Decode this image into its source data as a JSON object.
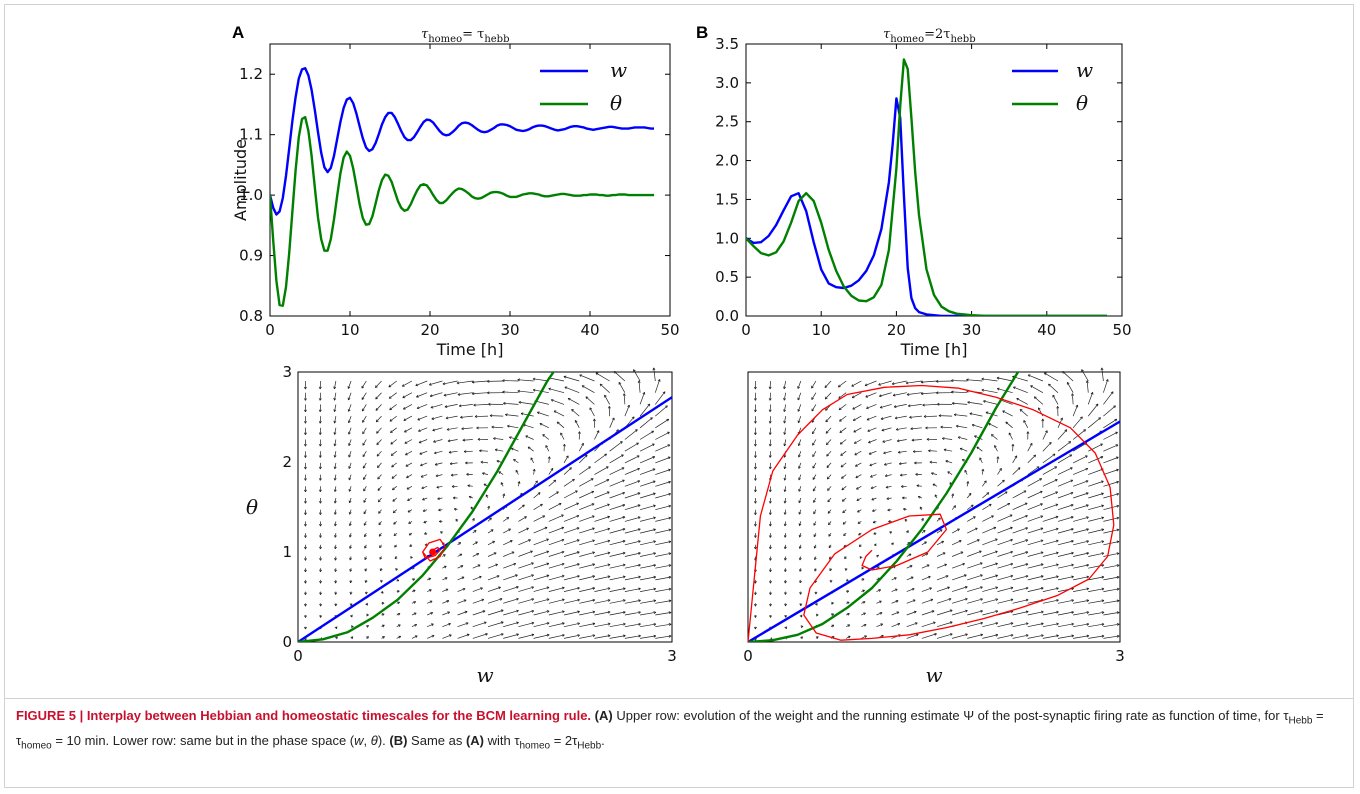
{
  "figure": {
    "panels": {
      "a": {
        "letter": "A",
        "title_tau": "τ",
        "title_sub1": "homeo",
        "title_eq": "= τ",
        "title_sub2": "hebb"
      },
      "b": {
        "letter": "B",
        "title_tau": "τ",
        "title_sub1": "homeo",
        "title_eq": "=2τ",
        "title_sub2": "hebb"
      }
    },
    "legend": {
      "w": "w",
      "theta": "θ"
    },
    "phase_axes": {
      "xlabel": "w",
      "ylabel": "θ"
    }
  },
  "colors": {
    "w": "#0000ff",
    "theta": "#008000",
    "trajectory": "#ff0000",
    "arrow": "#222222"
  },
  "chart_data": [
    {
      "type": "line",
      "panel": "A-top",
      "xlabel": "Time [h]",
      "ylabel": "Amplitude",
      "xlim": [
        0,
        50
      ],
      "ylim": [
        0.8,
        1.25
      ],
      "xticks": [
        "0",
        "10",
        "20",
        "30",
        "40",
        "50"
      ],
      "yticks": [
        "0.8",
        "0.9",
        "1.0",
        "1.1",
        "1.2"
      ],
      "series": [
        {
          "name": "w",
          "x": [
            0,
            0.4,
            0.8,
            1.2,
            1.6,
            2.0,
            2.4,
            2.8,
            3.2,
            3.6,
            4.0,
            4.4,
            4.8,
            5.2,
            5.6,
            6.0,
            6.4,
            6.8,
            7.2,
            7.6,
            8.0,
            8.4,
            8.8,
            9.2,
            9.6,
            10.0,
            10.4,
            10.8,
            11.2,
            11.6,
            12.0,
            12.4,
            12.8,
            13.2,
            13.6,
            14.0,
            14.4,
            14.8,
            15.2,
            15.6,
            16.0,
            16.4,
            16.8,
            17.2,
            17.6,
            18.0,
            18.4,
            18.8,
            19.2,
            19.6,
            20.0,
            20.4,
            20.8,
            21.2,
            21.6,
            22.0,
            22.4,
            22.8,
            23.2,
            23.6,
            24.0,
            24.4,
            24.8,
            25.2,
            25.6,
            26.0,
            26.4,
            26.8,
            27.2,
            27.6,
            28.0,
            28.4,
            28.8,
            29.2,
            29.6,
            30.0,
            30.4,
            30.8,
            31.2,
            31.6,
            32.0,
            32.4,
            32.8,
            33.2,
            33.6,
            34.0,
            34.4,
            34.8,
            35.2,
            35.6,
            36.0,
            36.4,
            36.8,
            37.2,
            37.6,
            38.0,
            38.4,
            38.8,
            39.2,
            39.6,
            40.0,
            40.4,
            40.8,
            41.2,
            41.6,
            42.0,
            42.4,
            42.8,
            43.2,
            43.6,
            44.0,
            44.4,
            44.8,
            45.2,
            45.6,
            46.0,
            46.4,
            46.8,
            47.2,
            47.6,
            48.0
          ],
          "values": [
            1.0,
            0.979,
            0.968,
            0.973,
            0.995,
            1.032,
            1.077,
            1.123,
            1.162,
            1.193,
            1.208,
            1.21,
            1.198,
            1.174,
            1.141,
            1.104,
            1.07,
            1.046,
            1.038,
            1.045,
            1.065,
            1.093,
            1.121,
            1.144,
            1.158,
            1.161,
            1.152,
            1.135,
            1.114,
            1.094,
            1.079,
            1.073,
            1.076,
            1.086,
            1.101,
            1.117,
            1.129,
            1.136,
            1.136,
            1.129,
            1.118,
            1.106,
            1.096,
            1.091,
            1.091,
            1.096,
            1.104,
            1.113,
            1.121,
            1.125,
            1.124,
            1.12,
            1.113,
            1.106,
            1.101,
            1.099,
            1.1,
            1.104,
            1.109,
            1.115,
            1.119,
            1.12,
            1.119,
            1.116,
            1.112,
            1.108,
            1.105,
            1.104,
            1.105,
            1.108,
            1.111,
            1.115,
            1.117,
            1.117,
            1.116,
            1.114,
            1.111,
            1.108,
            1.107,
            1.106,
            1.107,
            1.109,
            1.112,
            1.114,
            1.115,
            1.115,
            1.114,
            1.112,
            1.11,
            1.108,
            1.107,
            1.108,
            1.109,
            1.111,
            1.113,
            1.114,
            1.114,
            1.113,
            1.112,
            1.11,
            1.109,
            1.108,
            1.109,
            1.11,
            1.111,
            1.112,
            1.113,
            1.113,
            1.112,
            1.111,
            1.11,
            1.11,
            1.11,
            1.111,
            1.112,
            1.112,
            1.112,
            1.112,
            1.111,
            1.11,
            1.11
          ]
        },
        {
          "name": "θ",
          "x": [
            0,
            0.4,
            0.8,
            1.2,
            1.6,
            2.0,
            2.4,
            2.8,
            3.2,
            3.6,
            4.0,
            4.4,
            4.8,
            5.2,
            5.6,
            6.0,
            6.4,
            6.8,
            7.2,
            7.6,
            8.0,
            8.4,
            8.8,
            9.2,
            9.6,
            10.0,
            10.4,
            10.8,
            11.2,
            11.6,
            12.0,
            12.4,
            12.8,
            13.2,
            13.6,
            14.0,
            14.4,
            14.8,
            15.2,
            15.6,
            16.0,
            16.4,
            16.8,
            17.2,
            17.6,
            18.0,
            18.4,
            18.8,
            19.2,
            19.6,
            20.0,
            20.4,
            20.8,
            21.2,
            21.6,
            22.0,
            22.4,
            22.8,
            23.2,
            23.6,
            24.0,
            24.4,
            24.8,
            25.2,
            25.6,
            26.0,
            26.4,
            26.8,
            27.2,
            27.6,
            28.0,
            28.4,
            28.8,
            29.2,
            29.6,
            30.0,
            30.4,
            30.8,
            31.2,
            31.6,
            32.0,
            32.4,
            32.8,
            33.2,
            33.6,
            34.0,
            34.4,
            34.8,
            35.2,
            35.6,
            36.0,
            36.4,
            36.8,
            37.2,
            37.6,
            38.0,
            38.4,
            38.8,
            39.2,
            39.6,
            40.0,
            40.4,
            40.8,
            41.2,
            41.6,
            42.0,
            42.4,
            42.8,
            43.2,
            43.6,
            44.0,
            44.4,
            44.8,
            45.2,
            45.6,
            46.0,
            46.4,
            46.8,
            47.2,
            47.6,
            48.0
          ],
          "values": [
            1.0,
            0.925,
            0.858,
            0.818,
            0.817,
            0.848,
            0.904,
            0.973,
            1.041,
            1.096,
            1.126,
            1.129,
            1.106,
            1.065,
            1.013,
            0.963,
            0.927,
            0.908,
            0.908,
            0.927,
            0.96,
            0.999,
            1.036,
            1.062,
            1.072,
            1.065,
            1.044,
            1.015,
            0.985,
            0.962,
            0.951,
            0.952,
            0.965,
            0.986,
            1.008,
            1.025,
            1.034,
            1.032,
            1.022,
            1.006,
            0.99,
            0.979,
            0.974,
            0.976,
            0.985,
            0.997,
            1.008,
            1.016,
            1.018,
            1.016,
            1.009,
            1.0,
            0.992,
            0.987,
            0.987,
            0.991,
            0.997,
            1.003,
            1.008,
            1.011,
            1.01,
            1.007,
            1.003,
            0.998,
            0.995,
            0.994,
            0.995,
            0.998,
            1.001,
            1.004,
            1.005,
            1.005,
            1.004,
            1.002,
            0.999,
            0.997,
            0.997,
            0.997,
            0.999,
            1.001,
            1.002,
            1.003,
            1.003,
            1.002,
            1.001,
            0.999,
            0.998,
            0.998,
            0.999,
            1.0,
            1.001,
            1.002,
            1.002,
            1.001,
            1.0,
            0.999,
            0.999,
            0.999,
            1.0,
            1.0,
            1.001,
            1.001,
            1.001,
            1.0,
            1.0,
            0.999,
            0.999,
            1.0,
            1.0,
            1.001,
            1.001,
            1.001,
            1.0,
            1.0,
            1.0,
            1.0,
            1.0,
            1.0,
            1.0,
            1.0,
            1.0
          ]
        }
      ]
    },
    {
      "type": "line",
      "panel": "B-top",
      "xlabel": "Time [h]",
      "ylabel": "",
      "xlim": [
        0,
        50
      ],
      "ylim": [
        0,
        3.5
      ],
      "xticks": [
        "0",
        "10",
        "20",
        "30",
        "40",
        "50"
      ],
      "yticks": [
        "0.0",
        "0.5",
        "1.0",
        "1.5",
        "2.0",
        "2.5",
        "3.0",
        "3.5"
      ],
      "series": [
        {
          "name": "w",
          "x": [
            0,
            1,
            2,
            3,
            4,
            5,
            6,
            7,
            8,
            9,
            10,
            11,
            12,
            13,
            14,
            15,
            16,
            17,
            18,
            19,
            19.5,
            20,
            20.5,
            21,
            21.5,
            22,
            22.5,
            23,
            24,
            25,
            26,
            28,
            30,
            35,
            40,
            45,
            48
          ],
          "values": [
            1.0,
            0.94,
            0.95,
            1.03,
            1.17,
            1.36,
            1.54,
            1.58,
            1.35,
            0.95,
            0.6,
            0.42,
            0.37,
            0.36,
            0.39,
            0.46,
            0.58,
            0.78,
            1.12,
            1.72,
            2.2,
            2.8,
            2.55,
            1.55,
            0.62,
            0.23,
            0.1,
            0.05,
            0.02,
            0.01,
            0.0,
            0.0,
            0.0,
            0.0,
            0.0,
            0.0,
            0.0
          ]
        },
        {
          "name": "θ",
          "x": [
            0,
            1,
            2,
            3,
            4,
            5,
            6,
            7,
            8,
            9,
            10,
            11,
            12,
            13,
            14,
            15,
            16,
            17,
            18,
            19,
            20,
            20.5,
            21,
            21.5,
            22,
            22.5,
            23,
            24,
            25,
            26,
            27,
            28,
            30,
            32,
            35,
            40,
            45,
            48
          ],
          "values": [
            1.0,
            0.9,
            0.81,
            0.78,
            0.82,
            0.96,
            1.2,
            1.48,
            1.58,
            1.48,
            1.2,
            0.85,
            0.58,
            0.38,
            0.26,
            0.2,
            0.19,
            0.24,
            0.4,
            0.85,
            1.9,
            2.7,
            3.3,
            3.18,
            2.55,
            1.85,
            1.3,
            0.6,
            0.27,
            0.12,
            0.06,
            0.03,
            0.01,
            0.0,
            0.0,
            0.0,
            0.0,
            0.0
          ]
        }
      ]
    },
    {
      "type": "line",
      "panel": "A-bottom",
      "xlabel": "w",
      "ylabel": "θ",
      "xlim": [
        0,
        3
      ],
      "ylim": [
        0,
        3
      ],
      "xticks": [
        "0",
        "3"
      ],
      "yticks": [
        "0",
        "1",
        "2",
        "3"
      ],
      "series": [
        {
          "name": "",
          "x": [
            0,
            3
          ],
          "values": [
            0,
            2.72
          ]
        },
        {
          "name": "",
          "x": [
            0,
            0.2,
            0.4,
            0.6,
            0.8,
            1.0,
            1.2,
            1.4,
            1.6,
            1.8,
            2.0,
            2.2
          ],
          "values": [
            0,
            0.03,
            0.11,
            0.27,
            0.47,
            0.74,
            1.07,
            1.45,
            1.9,
            2.4,
            2.9,
            3.3
          ]
        }
      ],
      "trajectory": {
        "x": [
          1.0,
          1.06,
          1.14,
          1.18,
          1.14,
          1.05,
          1.0,
          1.02,
          1.1,
          1.14,
          1.12,
          1.08,
          1.08
        ],
        "values": [
          1.0,
          0.9,
          0.95,
          1.06,
          1.14,
          1.1,
          1.0,
          0.93,
          0.96,
          1.02,
          1.05,
          1.02,
          1.0
        ]
      }
    },
    {
      "type": "line",
      "panel": "B-bottom",
      "xlabel": "w",
      "ylabel": "",
      "xlim": [
        0,
        3
      ],
      "ylim": [
        0,
        3
      ],
      "xticks": [
        "0",
        "3"
      ],
      "yticks": [],
      "series": [
        {
          "name": "",
          "x": [
            0,
            3
          ],
          "values": [
            0,
            2.45
          ]
        },
        {
          "name": "",
          "x": [
            0,
            0.2,
            0.4,
            0.6,
            0.8,
            1.0,
            1.2,
            1.4,
            1.6,
            1.8,
            2.0,
            2.2
          ],
          "values": [
            0,
            0.02,
            0.08,
            0.2,
            0.38,
            0.6,
            0.9,
            1.25,
            1.65,
            2.1,
            2.6,
            3.05
          ]
        }
      ],
      "trajectory": {
        "x": [
          0.0,
          0.05,
          0.1,
          0.2,
          0.4,
          0.6,
          0.8,
          1.1,
          1.4,
          1.7,
          2.0,
          2.3,
          2.6,
          2.8,
          2.92,
          2.95,
          2.9,
          2.75,
          2.5,
          2.2,
          1.9,
          1.6,
          1.3,
          1.0,
          0.75,
          0.55,
          0.45,
          0.5,
          0.7,
          1.0,
          1.3,
          1.55,
          1.6,
          1.45,
          1.2,
          1.0,
          0.92,
          0.95,
          1.0
        ],
        "values": [
          0.0,
          0.7,
          1.4,
          1.9,
          2.3,
          2.58,
          2.75,
          2.83,
          2.85,
          2.82,
          2.72,
          2.58,
          2.38,
          2.1,
          1.72,
          1.3,
          0.95,
          0.7,
          0.52,
          0.38,
          0.26,
          0.16,
          0.08,
          0.04,
          0.02,
          0.1,
          0.3,
          0.6,
          0.98,
          1.25,
          1.4,
          1.42,
          1.25,
          1.0,
          0.85,
          0.8,
          0.85,
          0.95,
          1.02
        ]
      }
    }
  ],
  "caption": {
    "lead": "FIGURE 5 | Interplay between Hebbian and homeostatic timescales for the BCM learning rule.",
    "ref_a": "(A)",
    "part1": " Upper row: evolution of the weight and the running estimate Ψ of the post-synaptic firing rate as function of time, for τ",
    "sub_hebb": "Hebb",
    "part2": " = τ",
    "sub_homeo": "homeo",
    "part3": " = 10 min. Lower row: same but in the phase space (",
    "w": "w",
    "comma": ", ",
    "theta": "θ",
    "part4": "). ",
    "ref_b": "(B)",
    "part5": " Same as ",
    "ref_a2": "(A)",
    "part6": " with τ",
    "sub_homeo2": "homeo",
    "part7": " = 2τ",
    "sub_hebb2": "Hebb",
    "part8": "."
  }
}
